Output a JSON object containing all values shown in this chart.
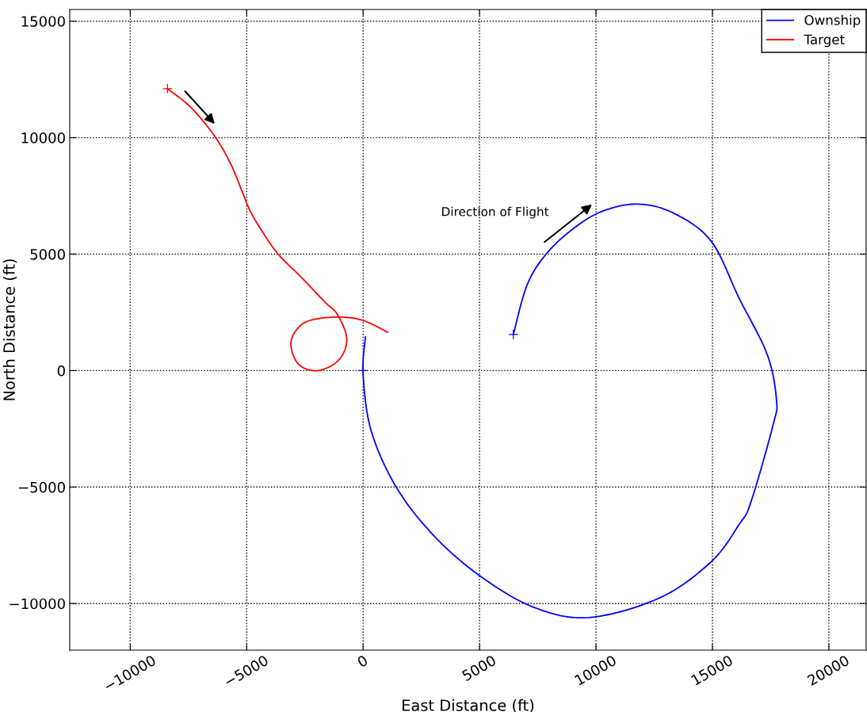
{
  "chart_data": {
    "type": "line",
    "xlabel": "East Distance (ft)",
    "ylabel": "North Distance (ft)",
    "series": [
      {
        "name": "Ownship",
        "color": "#0000ff",
        "x": [
          6450,
          7050,
          7900,
          9100,
          10300,
          11800,
          13350,
          14950,
          16150,
          17350,
          17750,
          17600,
          16650,
          16150,
          14950,
          12750,
          9700,
          7300,
          5000,
          3050,
          1450,
          350,
          0,
          100
        ],
        "values": [
          1550,
          3700,
          5050,
          6150,
          6850,
          7150,
          6750,
          5550,
          3100,
          700,
          -1250,
          -2350,
          -5650,
          -6600,
          -8200,
          -9750,
          -10600,
          -10150,
          -8800,
          -7100,
          -5050,
          -2600,
          -150,
          1450
        ]
      },
      {
        "name": "Target",
        "color": "#ff0000",
        "x": [
          -8400,
          -7400,
          -6400,
          -5700,
          -5200,
          -4850,
          -4350,
          -3650,
          -2650,
          -1650,
          -1100,
          -700,
          -1050,
          -1950,
          -2750,
          -3100,
          -2900,
          -2300,
          -1050,
          0,
          1050
        ],
        "values": [
          12100,
          11300,
          10100,
          8900,
          7700,
          6850,
          6000,
          5000,
          4000,
          2950,
          2400,
          1350,
          450,
          0,
          250,
          1050,
          1700,
          2150,
          2300,
          2150,
          1650
        ]
      },
      {
        "type": "scatter",
        "marker": "cross",
        "color": "#0000ff",
        "x": [
          6450,
          0
        ],
        "values": [
          1550,
          0
        ]
      },
      {
        "type": "scatter",
        "marker": "cross",
        "color": "#ff0000",
        "x": [
          -8400
        ],
        "values": [
          12100
        ]
      }
    ],
    "xlim": [
      -12600,
      21600
    ],
    "ylim": [
      -12000,
      15500
    ],
    "xticks": [
      {
        "value": -10000,
        "label": "−10000"
      },
      {
        "value": -5000,
        "label": "−5000"
      },
      0,
      5000,
      10000,
      15000,
      20000
    ],
    "yticks": [
      {
        "value": -10000,
        "label": "−10000"
      },
      {
        "value": -5000,
        "label": "−5000"
      },
      0,
      5000,
      10000,
      15000
    ],
    "grid": true,
    "legend": "top right",
    "line_style": "solid",
    "marker": "none",
    "annotations": [
      "Direction of Flight"
    ]
  }
}
